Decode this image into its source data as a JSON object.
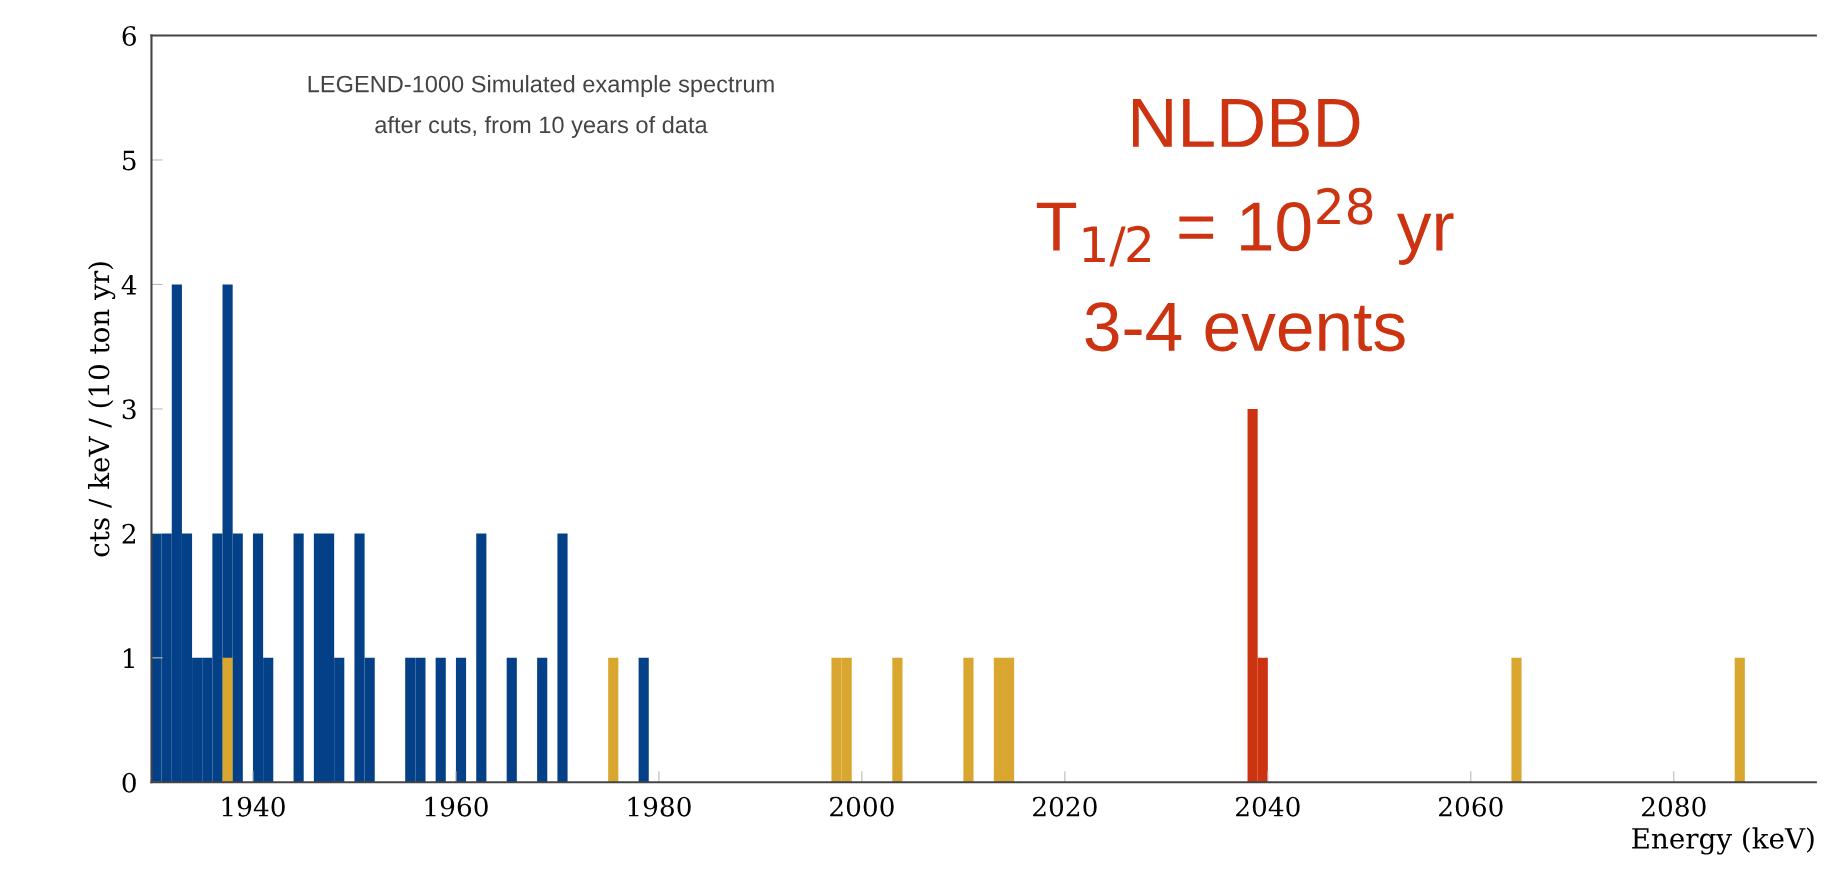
{
  "chart_data": {
    "type": "histogram",
    "annotations": [
      "LEGEND-1000 Simulated example spectrum\nafter cuts, from 10 years of data",
      "NLDBD",
      "T$_{1/2}$ = 10$^{28}$ yr",
      "3-4 events"
    ],
    "xlabel": "Energy (keV)",
    "ylabel": "cts / keV / (10 ton yr)",
    "xlim": [
      1930,
      2094
    ],
    "ylim": [
      0,
      6
    ],
    "xticks": [
      1940,
      1960,
      1980,
      2000,
      2020,
      2040,
      2060,
      2080
    ],
    "yticks": [
      0,
      1,
      2,
      3,
      4,
      5,
      6
    ],
    "bins": [
      1930,
      1931,
      1932,
      1933,
      1934,
      1935,
      1936,
      1937,
      1938,
      1939,
      1940,
      1941,
      1942,
      1943,
      1944,
      1945,
      1946,
      1947,
      1948,
      1949,
      1950,
      1951,
      1952,
      1953,
      1954,
      1955,
      1956,
      1957,
      1958,
      1959,
      1960,
      1961,
      1962,
      1963,
      1964,
      1965,
      1966,
      1967,
      1968,
      1969,
      1970,
      1971,
      1972,
      1973,
      1974,
      1975,
      1976,
      1977,
      1978,
      1979,
      1980,
      1981,
      1982,
      1983,
      1984,
      1985,
      1986,
      1987,
      1988,
      1989,
      1990,
      1991,
      1992,
      1993,
      1994,
      1995,
      1996,
      1997,
      1998,
      1999,
      2000,
      2001,
      2002,
      2003,
      2004,
      2005,
      2006,
      2007,
      2008,
      2009,
      2010,
      2011,
      2012,
      2013,
      2014,
      2015,
      2016,
      2017,
      2018,
      2019,
      2020,
      2021,
      2022,
      2023,
      2024,
      2025,
      2026,
      2027,
      2028,
      2029,
      2030,
      2031,
      2032,
      2033,
      2034,
      2035,
      2036,
      2037,
      2038,
      2039,
      2040,
      2041,
      2042,
      2043,
      2044,
      2045,
      2046,
      2047,
      2048,
      2049,
      2050,
      2051,
      2052,
      2053,
      2054,
      2055,
      2056,
      2057,
      2058,
      2059,
      2060,
      2061,
      2062,
      2063,
      2064,
      2065,
      2066,
      2067,
      2068,
      2069,
      2070,
      2071,
      2072,
      2073,
      2074,
      2075,
      2076,
      2077,
      2078,
      2079,
      2080,
      2081,
      2082,
      2083,
      2084,
      2085,
      2086,
      2087
    ],
    "series": [
      {
        "color": "#034087",
        "values": [
          2,
          2,
          4,
          2,
          1,
          1,
          2,
          4,
          2,
          0,
          2,
          1,
          0,
          0,
          2,
          0,
          2,
          2,
          1,
          0,
          2,
          1,
          0,
          0,
          0,
          1,
          1,
          0,
          1,
          0,
          1,
          0,
          2,
          0,
          0,
          1,
          0,
          0,
          1,
          0,
          2,
          0,
          0,
          0,
          0,
          0,
          0,
          0,
          1,
          0,
          0,
          0,
          0,
          0,
          0,
          0,
          0,
          0,
          0,
          0,
          0,
          0,
          0,
          0,
          0,
          0,
          0,
          0,
          0,
          0,
          0,
          0,
          0,
          0,
          0,
          0,
          0,
          0,
          0,
          0,
          0,
          0,
          0,
          0,
          0,
          0,
          0,
          0,
          0,
          0,
          0,
          0,
          0,
          0,
          0,
          0,
          0,
          0,
          0,
          0,
          0,
          0,
          0,
          0,
          0,
          0,
          0,
          0,
          0,
          0,
          0,
          0,
          0,
          0,
          0,
          0,
          0,
          0,
          0,
          0,
          0,
          0,
          0,
          0,
          0,
          0,
          0,
          0,
          0,
          0,
          0,
          0,
          0,
          0,
          0,
          0,
          0,
          0,
          0,
          0,
          0,
          0,
          0,
          0,
          0,
          0,
          0,
          0,
          0,
          0,
          0,
          0,
          0,
          0,
          0,
          0,
          0
        ]
      },
      {
        "color": "#d9a730",
        "values": [
          0,
          0,
          0,
          0,
          0,
          0,
          0,
          1,
          0,
          0,
          0,
          0,
          0,
          0,
          0,
          0,
          0,
          0,
          0,
          0,
          0,
          0,
          0,
          0,
          0,
          0,
          0,
          0,
          0,
          0,
          0,
          0,
          0,
          0,
          0,
          0,
          0,
          0,
          0,
          0,
          0,
          0,
          0,
          0,
          0,
          1,
          0,
          0,
          0,
          0,
          0,
          0,
          0,
          0,
          0,
          0,
          0,
          0,
          0,
          0,
          0,
          0,
          0,
          0,
          0,
          0,
          0,
          1,
          1,
          0,
          0,
          0,
          0,
          1,
          0,
          0,
          0,
          0,
          0,
          0,
          1,
          0,
          0,
          1,
          1,
          0,
          0,
          0,
          0,
          0,
          0,
          0,
          0,
          0,
          0,
          0,
          0,
          0,
          0,
          0,
          0,
          0,
          0,
          0,
          0,
          0,
          0,
          0,
          0,
          0,
          0,
          0,
          0,
          0,
          0,
          0,
          0,
          0,
          0,
          0,
          0,
          0,
          0,
          0,
          0,
          0,
          0,
          0,
          0,
          0,
          0,
          0,
          0,
          0,
          1,
          0,
          0,
          0,
          0,
          0,
          0,
          0,
          0,
          0,
          0,
          0,
          0,
          0,
          0,
          0,
          0,
          0,
          0,
          0,
          0,
          0,
          1
        ]
      },
      {
        "color": "#cc3311",
        "values": [
          0,
          0,
          0,
          0,
          0,
          0,
          0,
          0,
          0,
          0,
          0,
          0,
          0,
          0,
          0,
          0,
          0,
          0,
          0,
          0,
          0,
          0,
          0,
          0,
          0,
          0,
          0,
          0,
          0,
          0,
          0,
          0,
          0,
          0,
          0,
          0,
          0,
          0,
          0,
          0,
          0,
          0,
          0,
          0,
          0,
          0,
          0,
          0,
          0,
          0,
          0,
          0,
          0,
          0,
          0,
          0,
          0,
          0,
          0,
          0,
          0,
          0,
          0,
          0,
          0,
          0,
          0,
          0,
          0,
          0,
          0,
          0,
          0,
          0,
          0,
          0,
          0,
          0,
          0,
          0,
          0,
          0,
          0,
          0,
          0,
          0,
          0,
          0,
          0,
          0,
          0,
          0,
          0,
          0,
          0,
          0,
          0,
          0,
          0,
          0,
          0,
          0,
          0,
          0,
          0,
          0,
          0,
          0,
          3,
          1,
          0,
          0,
          0,
          0,
          0,
          0,
          0,
          0,
          0,
          0,
          0,
          0,
          0,
          0,
          0,
          0,
          0,
          0,
          0,
          0,
          0,
          0,
          0,
          0,
          0,
          0,
          0,
          0,
          0,
          0,
          0,
          0,
          0,
          0,
          0,
          0,
          0,
          0,
          0,
          0,
          0,
          0,
          0,
          0,
          0,
          0,
          0
        ]
      }
    ]
  }
}
